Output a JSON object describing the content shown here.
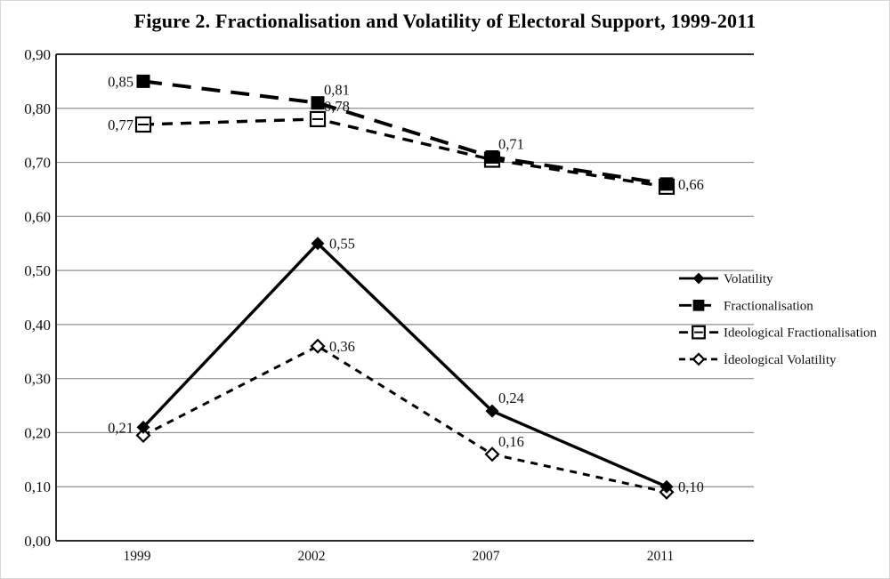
{
  "chart_data": {
    "type": "line",
    "title": "Figure 2. Fractionalisation and Volatility of Electoral Support, 1999-2011",
    "categories": [
      "1999",
      "2002",
      "2007",
      "2011"
    ],
    "series": [
      {
        "name": "Volatility",
        "values": [
          0.21,
          0.55,
          0.24,
          0.1
        ],
        "point_labels": [
          "0,21",
          "0,55",
          "0,24",
          "0,10"
        ],
        "label_pos": [
          "left",
          "right",
          "up-right",
          "right"
        ],
        "line_style": "solid",
        "marker": "diamond-filled",
        "color": "#000000"
      },
      {
        "name": "Fractionalisation",
        "values": [
          0.85,
          0.81,
          0.71,
          0.66
        ],
        "point_labels": [
          "0,85",
          "0,81",
          "0,71",
          "0,66"
        ],
        "label_pos": [
          "left",
          "up-right",
          "up-right",
          "right"
        ],
        "line_style": "long-dash",
        "marker": "square-filled",
        "color": "#000000"
      },
      {
        "name": "Ideological Fractionalisation",
        "values": [
          0.77,
          0.78,
          0.705,
          0.655
        ],
        "point_labels": [
          "0,77",
          "0,78",
          "",
          ""
        ],
        "label_pos": [
          "left",
          "up-right",
          null,
          null
        ],
        "line_style": "dash",
        "marker": "square-open",
        "color": "#000000"
      },
      {
        "name": "İdeological Volatility",
        "values": [
          0.195,
          0.36,
          0.16,
          0.09
        ],
        "point_labels": [
          "",
          "0,36",
          "0,16",
          ""
        ],
        "label_pos": [
          null,
          "right",
          "up-right",
          null
        ],
        "line_style": "short-dash",
        "marker": "diamond-open",
        "color": "#000000"
      }
    ],
    "ylim": [
      0.0,
      0.9
    ],
    "ytick_step": 0.1,
    "ytick_labels": [
      "0,00",
      "0,10",
      "0,20",
      "0,30",
      "0,40",
      "0,50",
      "0,60",
      "0,70",
      "0,80",
      "0,90"
    ],
    "decimal_separator": ",",
    "grid": true,
    "legend_position": "right",
    "axis_color": "#2b2b2b",
    "grid_color": "#8f8f8f",
    "label_color": "#111111"
  }
}
